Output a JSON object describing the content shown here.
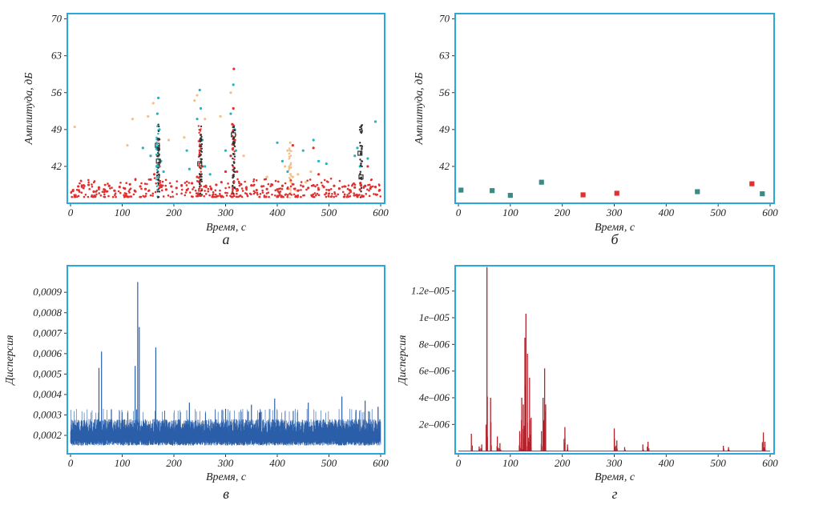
{
  "chart_data": [
    {
      "type": "scatter",
      "panel_label": "а",
      "xlabel": "Время, с",
      "ylabel": "Амплитуда, дБ",
      "xlim": [
        0,
        600
      ],
      "ylim": [
        35,
        71
      ],
      "xticks": [
        "0",
        "100",
        "200",
        "300",
        "400",
        "500",
        "600"
      ],
      "yticks": [
        "42",
        "49",
        "56",
        "63",
        "70"
      ],
      "grid": false,
      "colors": {
        "red": "#e03030",
        "cyan": "#22b5c0",
        "peach": "#f2c08a",
        "dark": "#333333"
      },
      "series": [
        {
          "color": "red",
          "marker": "dot",
          "points": [
            [
              5,
              37.5
            ],
            [
              15,
              38.2
            ],
            [
              25,
              37.9
            ],
            [
              35,
              38.5
            ],
            [
              45,
              37.2
            ],
            [
              55,
              38.0
            ],
            [
              65,
              37.6
            ],
            [
              75,
              38.3
            ],
            [
              85,
              37.4
            ],
            [
              95,
              38.1
            ],
            [
              105,
              37.8
            ],
            [
              115,
              38.6
            ],
            [
              125,
              37.3
            ],
            [
              135,
              38.2
            ],
            [
              145,
              37.7
            ],
            [
              155,
              39.5
            ],
            [
              162,
              40.5
            ],
            [
              168,
              44.0
            ],
            [
              170,
              47.0
            ],
            [
              172,
              42.0
            ],
            [
              175,
              38.4
            ],
            [
              185,
              37.6
            ],
            [
              195,
              38.2
            ],
            [
              205,
              37.9
            ],
            [
              215,
              38.4
            ],
            [
              225,
              37.5
            ],
            [
              235,
              38.8
            ],
            [
              245,
              40.0
            ],
            [
              250,
              45.0
            ],
            [
              252,
              48.0
            ],
            [
              255,
              42.0
            ],
            [
              262,
              38.3
            ],
            [
              272,
              37.8
            ],
            [
              282,
              38.5
            ],
            [
              292,
              39.0
            ],
            [
              300,
              41.0
            ],
            [
              310,
              44.0
            ],
            [
              313,
              50.0
            ],
            [
              315,
              53.0
            ],
            [
              316,
              60.5
            ],
            [
              318,
              47.0
            ],
            [
              322,
              41.0
            ],
            [
              330,
              38.6
            ],
            [
              340,
              37.9
            ],
            [
              350,
              38.4
            ],
            [
              360,
              37.5
            ],
            [
              370,
              38.2
            ],
            [
              380,
              37.7
            ],
            [
              390,
              38.5
            ],
            [
              400,
              37.6
            ],
            [
              410,
              38.3
            ],
            [
              420,
              37.8
            ],
            [
              430,
              38.6
            ],
            [
              440,
              37.4
            ],
            [
              450,
              38.2
            ],
            [
              460,
              37.9
            ],
            [
              470,
              38.4
            ],
            [
              480,
              37.6
            ],
            [
              490,
              38.1
            ],
            [
              500,
              37.5
            ],
            [
              510,
              38.3
            ],
            [
              520,
              37.8
            ],
            [
              530,
              38.2
            ],
            [
              540,
              37.5
            ],
            [
              550,
              38.0
            ],
            [
              560,
              37.6
            ],
            [
              570,
              38.3
            ],
            [
              580,
              37.8
            ],
            [
              590,
              38.1
            ],
            [
              598,
              37.5
            ],
            [
              470,
              45.5
            ],
            [
              480,
              40.5
            ],
            [
              430,
              46.0
            ],
            [
              575,
              42.0
            ]
          ]
        },
        {
          "color": "cyan",
          "marker": "dot",
          "points": [
            [
              140,
              45.5
            ],
            [
              155,
              44.0
            ],
            [
              168,
              52.0
            ],
            [
              170,
              55.0
            ],
            [
              172,
              49.0
            ],
            [
              175,
              43.0
            ],
            [
              180,
              41.0
            ],
            [
              225,
              45.0
            ],
            [
              230,
              41.5
            ],
            [
              245,
              51.0
            ],
            [
              250,
              56.5
            ],
            [
              252,
              53.0
            ],
            [
              255,
              47.0
            ],
            [
              260,
              42.0
            ],
            [
              270,
              40.5
            ],
            [
              300,
              45.0
            ],
            [
              310,
              52.0
            ],
            [
              315,
              57.5
            ],
            [
              318,
              49.0
            ],
            [
              320,
              45.0
            ],
            [
              400,
              46.5
            ],
            [
              410,
              43.0
            ],
            [
              420,
              41.0
            ],
            [
              450,
              45.0
            ],
            [
              470,
              47.0
            ],
            [
              480,
              43.0
            ],
            [
              495,
              42.5
            ],
            [
              550,
              44.0
            ],
            [
              555,
              45.5
            ],
            [
              560,
              42.0
            ],
            [
              575,
              43.5
            ],
            [
              590,
              50.5
            ]
          ]
        },
        {
          "color": "peach",
          "marker": "dot",
          "points": [
            [
              8,
              49.5
            ],
            [
              110,
              46.0
            ],
            [
              120,
              51.0
            ],
            [
              150,
              51.5
            ],
            [
              160,
              54.0
            ],
            [
              190,
              47.0
            ],
            [
              220,
              47.5
            ],
            [
              240,
              54.5
            ],
            [
              245,
              55.5
            ],
            [
              260,
              51.0
            ],
            [
              290,
              51.5
            ],
            [
              310,
              56.0
            ],
            [
              320,
              48.0
            ],
            [
              335,
              44.0
            ],
            [
              380,
              40.0
            ],
            [
              415,
              42.0
            ],
            [
              420,
              45.0
            ],
            [
              425,
              46.5
            ],
            [
              430,
              40.0
            ],
            [
              435,
              37.5
            ],
            [
              440,
              40.5
            ],
            [
              455,
              39.0
            ],
            [
              465,
              41.0
            ]
          ]
        },
        {
          "color": "dark",
          "marker": "square",
          "points": [
            [
              168,
              46.0
            ],
            [
              170,
              43.0
            ],
            [
              250,
              42.5
            ],
            [
              315,
              48.0
            ],
            [
              560,
              44.5
            ],
            [
              562,
              40.0
            ]
          ]
        }
      ]
    },
    {
      "type": "scatter",
      "panel_label": "б",
      "xlabel": "Время, с",
      "ylabel": "Амплитуда, дБ",
      "xlim": [
        0,
        600
      ],
      "ylim": [
        35,
        71
      ],
      "xticks": [
        "0",
        "100",
        "200",
        "300",
        "400",
        "500",
        "600"
      ],
      "yticks": [
        "42",
        "49",
        "56",
        "63",
        "70"
      ],
      "grid": false,
      "colors": {
        "teal": "#3a8a86",
        "red": "#e03030"
      },
      "series": [
        {
          "color": "teal",
          "marker": "square",
          "points": [
            [
              5,
              37.5
            ],
            [
              65,
              37.4
            ],
            [
              100,
              36.5
            ],
            [
              160,
              39.0
            ],
            [
              460,
              37.2
            ],
            [
              585,
              36.8
            ]
          ]
        },
        {
          "color": "red",
          "marker": "square",
          "points": [
            [
              240,
              36.6
            ],
            [
              305,
              36.9
            ],
            [
              565,
              38.7
            ]
          ]
        }
      ]
    },
    {
      "type": "line",
      "panel_label": "в",
      "xlabel": "Время, с",
      "ylabel": "Дисперсия",
      "xlim": [
        0,
        600
      ],
      "ylim": [
        0.00011,
        0.00103
      ],
      "xticks": [
        "0",
        "100",
        "200",
        "300",
        "400",
        "500",
        "600"
      ],
      "yticks": [
        "0,0002",
        "0,0003",
        "0,0004",
        "0,0005",
        "0,0006",
        "0,0007",
        "0,0008",
        "0,0009"
      ],
      "grid": false,
      "color": "#2a5ea8",
      "band": {
        "low": 0.00015,
        "high": 0.00031,
        "typical_high": 0.00028
      },
      "peaks": [
        [
          55,
          0.00053
        ],
        [
          60,
          0.00061
        ],
        [
          125,
          0.00054
        ],
        [
          130,
          0.00095
        ],
        [
          133,
          0.00073
        ],
        [
          165,
          0.00063
        ],
        [
          230,
          0.00036
        ],
        [
          300,
          0.00033
        ],
        [
          350,
          0.00035
        ],
        [
          395,
          0.00038
        ],
        [
          460,
          0.00036
        ],
        [
          525,
          0.00039
        ],
        [
          570,
          0.00037
        ],
        [
          595,
          0.00034
        ]
      ]
    },
    {
      "type": "line",
      "panel_label": "г",
      "xlabel": "Время, с",
      "ylabel": "Дисперсия",
      "xlim": [
        0,
        600
      ],
      "ylim": [
        -2e-07,
        1.39e-05
      ],
      "xticks": [
        "0",
        "100",
        "200",
        "300",
        "400",
        "500",
        "600"
      ],
      "yticks": [
        "2e–006",
        "4e–006",
        "6e–006",
        "8e–006",
        "1e–005",
        "1.2e–005"
      ],
      "grid": false,
      "color": "#b3232c",
      "baseline_color": "#b3232c",
      "peaks": [
        [
          25,
          1.3e-06
        ],
        [
          40,
          3.5e-07
        ],
        [
          45,
          5e-07
        ],
        [
          55,
          1.38e-05
        ],
        [
          62,
          4e-06
        ],
        [
          75,
          1.1e-06
        ],
        [
          80,
          6e-07
        ],
        [
          118,
          1.5e-06
        ],
        [
          122,
          4e-06
        ],
        [
          125,
          3.5e-06
        ],
        [
          128,
          8.5e-06
        ],
        [
          130,
          1.03e-05
        ],
        [
          133,
          7.3e-06
        ],
        [
          137,
          5.5e-06
        ],
        [
          140,
          2.5e-06
        ],
        [
          160,
          1.5e-06
        ],
        [
          163,
          4e-06
        ],
        [
          166,
          6.2e-06
        ],
        [
          168,
          3.5e-06
        ],
        [
          205,
          1.8e-06
        ],
        [
          210,
          5e-07
        ],
        [
          300,
          1.7e-06
        ],
        [
          305,
          8e-07
        ],
        [
          320,
          3e-07
        ],
        [
          355,
          5e-07
        ],
        [
          365,
          7e-07
        ],
        [
          510,
          4e-07
        ],
        [
          520,
          3e-07
        ],
        [
          587,
          1.4e-06
        ],
        [
          590,
          7e-07
        ]
      ]
    }
  ]
}
